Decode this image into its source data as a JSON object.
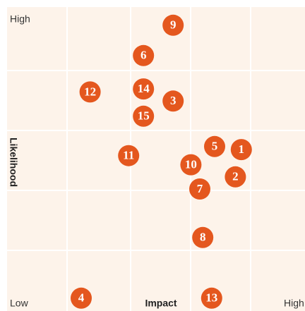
{
  "chart_data": {
    "type": "scatter",
    "xlabel": "Impact",
    "ylabel": "Likelihood",
    "y_high_label": "High",
    "x_low_label": "Low",
    "x_high_label": "High",
    "color": "#e4571e",
    "xlim": [
      0,
      10
    ],
    "ylim": [
      0,
      10
    ],
    "labels": [
      "1",
      "2",
      "3",
      "4",
      "5",
      "6",
      "7",
      "8",
      "9",
      "10",
      "11",
      "12",
      "13",
      "14",
      "15"
    ],
    "x": [
      7.9,
      7.7,
      5.6,
      2.5,
      7.0,
      4.6,
      6.5,
      6.6,
      5.6,
      6.2,
      4.1,
      2.8,
      6.9,
      4.6,
      4.6
    ],
    "y": [
      5.3,
      4.4,
      6.9,
      0.4,
      5.4,
      8.4,
      4.0,
      2.4,
      9.4,
      4.8,
      5.1,
      7.2,
      0.4,
      7.3,
      6.4
    ]
  }
}
